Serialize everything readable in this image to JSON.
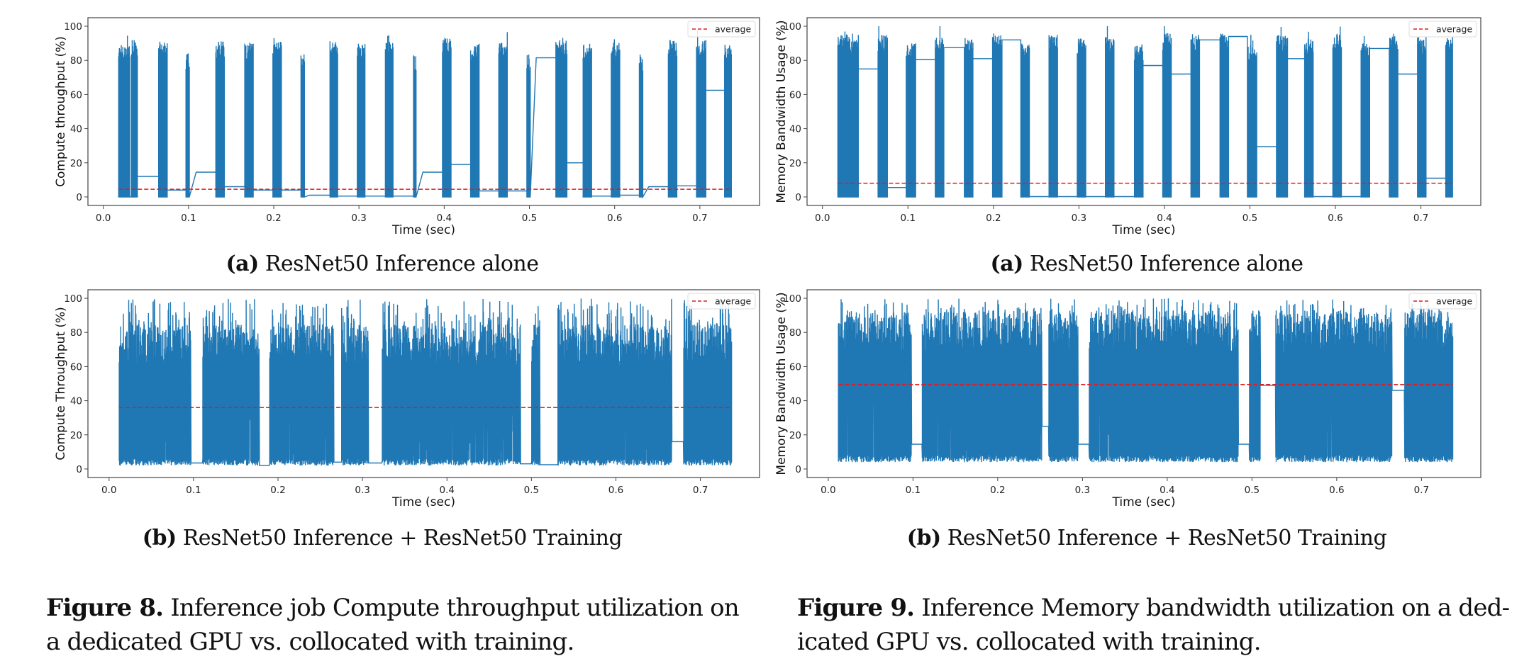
{
  "figures": [
    {
      "id": "fig8",
      "label": "Figure 8.",
      "caption": "Inference job Compute throughput utilization on a dedicated GPU vs. collocated with training.",
      "caption_lines": [
        "Inference job Compute throughput utilization on",
        "a dedicated GPU vs. collocated with training."
      ],
      "subfigures": [
        {
          "tag": "(a)",
          "title": "ResNet50 Inference alone"
        },
        {
          "tag": "(b)",
          "title": "ResNet50 Inference + ResNet50 Training"
        }
      ]
    },
    {
      "id": "fig9",
      "label": "Figure 9.",
      "caption": "Inference Memory bandwidth utilization on a dedicated GPU vs. collocated with training.",
      "caption_lines": [
        "Inference Memory bandwidth utilization on a ded-",
        "icated GPU vs. collocated with training."
      ],
      "subfigures": [
        {
          "tag": "(a)",
          "title": "ResNet50 Inference alone"
        },
        {
          "tag": "(b)",
          "title": "ResNet50 Inference + ResNet50 Training"
        }
      ]
    }
  ],
  "colors": {
    "series": "#1f77b4",
    "average": "#e41a1c",
    "axes": "#444444"
  },
  "chart_data": [
    {
      "id": "fig8a",
      "type": "line",
      "title": "",
      "xlabel": "Time (sec)",
      "ylabel": "Compute throughput (%)",
      "xlim": [
        -0.018,
        0.77
      ],
      "ylim": [
        -5,
        105
      ],
      "xticks": [
        "0.0",
        "0.1",
        "0.2",
        "0.3",
        "0.4",
        "0.5",
        "0.6",
        "0.7"
      ],
      "yticks": [
        "0",
        "20",
        "40",
        "60",
        "80",
        "100"
      ],
      "grid": false,
      "legend": {
        "position": "top-right",
        "entries": [
          "average"
        ]
      },
      "series": [
        {
          "name": "throughput",
          "style": "bursty",
          "bursts": [
            [
              0.018,
              0.031,
              88
            ],
            [
              0.033,
              0.04,
              90
            ],
            [
              0.065,
              0.075,
              89
            ],
            [
              0.097,
              0.101,
              82
            ],
            [
              0.132,
              0.142,
              89
            ],
            [
              0.166,
              0.176,
              88
            ],
            [
              0.199,
              0.209,
              89
            ],
            [
              0.232,
              0.236,
              82
            ],
            [
              0.266,
              0.275,
              89
            ],
            [
              0.298,
              0.307,
              88
            ],
            [
              0.331,
              0.34,
              89
            ],
            [
              0.364,
              0.367,
              82
            ],
            [
              0.398,
              0.408,
              92
            ],
            [
              0.431,
              0.441,
              88
            ],
            [
              0.464,
              0.474,
              89
            ],
            [
              0.497,
              0.501,
              82
            ],
            [
              0.531,
              0.544,
              90
            ],
            [
              0.563,
              0.573,
              88
            ],
            [
              0.596,
              0.606,
              89
            ],
            [
              0.629,
              0.633,
              82
            ],
            [
              0.663,
              0.673,
              90
            ],
            [
              0.696,
              0.707,
              90
            ],
            [
              0.729,
              0.737,
              88
            ]
          ],
          "idle_levels": [
            [
              0.04,
              0.065,
              12
            ],
            [
              0.075,
              0.097,
              4
            ],
            [
              0.109,
              0.132,
              14.5
            ],
            [
              0.142,
              0.166,
              6
            ],
            [
              0.176,
              0.199,
              4
            ],
            [
              0.209,
              0.232,
              4
            ],
            [
              0.242,
              0.266,
              1
            ],
            [
              0.275,
              0.298,
              0.5
            ],
            [
              0.307,
              0.331,
              0.5
            ],
            [
              0.34,
              0.364,
              0.5
            ],
            [
              0.375,
              0.398,
              14.5
            ],
            [
              0.408,
              0.431,
              19
            ],
            [
              0.441,
              0.464,
              3.5
            ],
            [
              0.474,
              0.497,
              3.5
            ],
            [
              0.508,
              0.531,
              81.5
            ],
            [
              0.544,
              0.563,
              20
            ],
            [
              0.573,
              0.596,
              0.5
            ],
            [
              0.606,
              0.629,
              1
            ],
            [
              0.64,
              0.663,
              6
            ],
            [
              0.673,
              0.696,
              6.5
            ],
            [
              0.707,
              0.729,
              62.5
            ]
          ]
        }
      ],
      "average": 4.5
    },
    {
      "id": "fig8b",
      "type": "line",
      "title": "",
      "xlabel": "Time (sec)",
      "ylabel": "Compute Throughput (%)",
      "xlim": [
        -0.025,
        0.77
      ],
      "ylim": [
        -5,
        105
      ],
      "xticks": [
        "0.0",
        "0.1",
        "0.2",
        "0.3",
        "0.4",
        "0.5",
        "0.6",
        "0.7"
      ],
      "yticks": [
        "0",
        "20",
        "40",
        "60",
        "80",
        "100"
      ],
      "grid": false,
      "legend": {
        "position": "top-right",
        "entries": [
          "average"
        ]
      },
      "series": [
        {
          "name": "throughput",
          "style": "dense",
          "range": [
            0.012,
            0.737
          ],
          "low": 3,
          "high_typical": 70,
          "peak": 100,
          "gaps": [
            [
              0.097,
              0.111,
              3.5
            ],
            [
              0.178,
              0.19,
              2
            ],
            [
              0.266,
              0.275,
              4
            ],
            [
              0.307,
              0.323,
              3.5
            ],
            [
              0.487,
              0.5,
              3
            ],
            [
              0.51,
              0.531,
              2.5
            ],
            [
              0.666,
              0.68,
              16
            ]
          ]
        }
      ],
      "average": 36
    },
    {
      "id": "fig9a",
      "type": "line",
      "title": "",
      "xlabel": "Time (sec)",
      "ylabel": "Memory Bandwidth Usage (%)",
      "xlim": [
        -0.018,
        0.77
      ],
      "ylim": [
        -5,
        105
      ],
      "xticks": [
        "0.0",
        "0.1",
        "0.2",
        "0.3",
        "0.4",
        "0.5",
        "0.6",
        "0.7"
      ],
      "yticks": [
        "0",
        "20",
        "40",
        "60",
        "80",
        "100"
      ],
      "grid": false,
      "legend": {
        "position": "top-right",
        "entries": [
          "average"
        ]
      },
      "series": [
        {
          "name": "bandwidth",
          "style": "bursty",
          "bursts": [
            [
              0.018,
              0.03,
              93
            ],
            [
              0.031,
              0.042,
              92
            ],
            [
              0.065,
              0.076,
              93
            ],
            [
              0.098,
              0.109,
              88
            ],
            [
              0.132,
              0.142,
              94
            ],
            [
              0.166,
              0.176,
              91
            ],
            [
              0.199,
              0.21,
              93
            ],
            [
              0.232,
              0.242,
              88
            ],
            [
              0.265,
              0.275,
              93
            ],
            [
              0.298,
              0.308,
              91
            ],
            [
              0.331,
              0.341,
              93
            ],
            [
              0.365,
              0.375,
              88
            ],
            [
              0.398,
              0.408,
              94
            ],
            [
              0.431,
              0.441,
              93
            ],
            [
              0.465,
              0.475,
              94
            ],
            [
              0.497,
              0.508,
              88
            ],
            [
              0.531,
              0.544,
              93
            ],
            [
              0.564,
              0.574,
              92
            ],
            [
              0.597,
              0.607,
              94
            ],
            [
              0.63,
              0.64,
              88
            ],
            [
              0.663,
              0.673,
              94
            ],
            [
              0.696,
              0.706,
              92
            ],
            [
              0.729,
              0.737,
              93
            ]
          ],
          "idle_levels": [
            [
              0.042,
              0.065,
              75
            ],
            [
              0.076,
              0.098,
              5.5
            ],
            [
              0.109,
              0.132,
              80.5
            ],
            [
              0.142,
              0.166,
              87.5
            ],
            [
              0.176,
              0.199,
              81
            ],
            [
              0.21,
              0.232,
              92
            ],
            [
              0.242,
              0.265,
              0.2
            ],
            [
              0.275,
              0.298,
              0.2
            ],
            [
              0.308,
              0.331,
              0.2
            ],
            [
              0.341,
              0.365,
              0.2
            ],
            [
              0.375,
              0.398,
              77
            ],
            [
              0.408,
              0.431,
              72
            ],
            [
              0.441,
              0.465,
              92
            ],
            [
              0.475,
              0.497,
              94
            ],
            [
              0.508,
              0.531,
              29.5
            ],
            [
              0.544,
              0.564,
              81
            ],
            [
              0.574,
              0.597,
              0.2
            ],
            [
              0.607,
              0.63,
              0.2
            ],
            [
              0.64,
              0.663,
              87
            ],
            [
              0.673,
              0.696,
              72
            ],
            [
              0.706,
              0.729,
              11
            ]
          ]
        }
      ],
      "average": 8
    },
    {
      "id": "fig9b",
      "type": "line",
      "title": "",
      "xlabel": "Time (sec)",
      "ylabel": "Memory Bandwidth Usage (%)",
      "xlim": [
        -0.025,
        0.77
      ],
      "ylim": [
        -5,
        105
      ],
      "xticks": [
        "0.0",
        "0.1",
        "0.2",
        "0.3",
        "0.4",
        "0.5",
        "0.6",
        "0.7"
      ],
      "yticks": [
        "0",
        "20",
        "40",
        "60",
        "80",
        "100"
      ],
      "grid": false,
      "legend": {
        "position": "top-right",
        "entries": [
          "average"
        ]
      },
      "series": [
        {
          "name": "bandwidth",
          "style": "dense",
          "range": [
            0.012,
            0.737
          ],
          "low": 5,
          "high_typical": 78,
          "peak": 100,
          "gaps": [
            [
              0.098,
              0.111,
              14.5
            ],
            [
              0.252,
              0.26,
              25
            ],
            [
              0.295,
              0.308,
              14.5
            ],
            [
              0.484,
              0.497,
              14.5
            ],
            [
              0.51,
              0.528,
              49
            ],
            [
              0.665,
              0.68,
              46
            ]
          ]
        }
      ],
      "average": 49.5
    }
  ]
}
